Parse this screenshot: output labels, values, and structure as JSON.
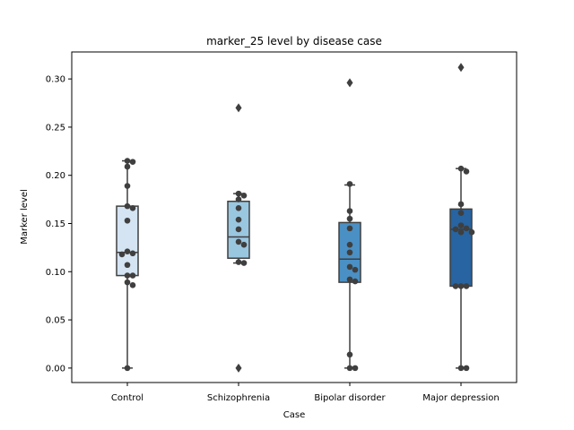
{
  "chart_data": {
    "type": "box",
    "title": "marker_25 level by disease case",
    "xlabel": "Case",
    "ylabel": "Marker level",
    "ylim": [
      -0.015,
      0.328
    ],
    "yticks": [
      0.0,
      0.05,
      0.1,
      0.15,
      0.2,
      0.25,
      0.3
    ],
    "ytick_labels": [
      "0.00",
      "0.05",
      "0.10",
      "0.15",
      "0.20",
      "0.25",
      "0.30"
    ],
    "grid": false,
    "categories": [
      "Control",
      "Schizophrenia",
      "Bipolar disorder",
      "Major depression"
    ],
    "colors": [
      "#d4e4f3",
      "#9ac7e0",
      "#4a90c4",
      "#2764a1"
    ],
    "boxes": [
      {
        "q1": 0.096,
        "median": 0.12,
        "q3": 0.168,
        "whisker_low": 0.0,
        "whisker_high": 0.215,
        "outliers": []
      },
      {
        "q1": 0.114,
        "median": 0.136,
        "q3": 0.173,
        "whisker_low": 0.109,
        "whisker_high": 0.181,
        "outliers": [
          0.27,
          0.0
        ]
      },
      {
        "q1": 0.089,
        "median": 0.113,
        "q3": 0.151,
        "whisker_low": 0.0,
        "whisker_high": 0.19,
        "outliers": [
          0.296
        ]
      },
      {
        "q1": 0.085,
        "median": 0.144,
        "q3": 0.165,
        "whisker_low": 0.0,
        "whisker_high": 0.207,
        "outliers": [
          0.312
        ]
      }
    ],
    "points": [
      [
        0.215,
        0.214,
        0.209,
        0.189,
        0.168,
        0.166,
        0.153,
        0.121,
        0.119,
        0.118,
        0.107,
        0.096,
        0.096,
        0.089,
        0.086,
        0.0
      ],
      [
        0.181,
        0.179,
        0.175,
        0.166,
        0.154,
        0.144,
        0.131,
        0.128,
        0.11,
        0.109
      ],
      [
        0.191,
        0.163,
        0.155,
        0.145,
        0.128,
        0.12,
        0.105,
        0.102,
        0.092,
        0.09,
        0.014,
        0.0,
        0.0
      ],
      [
        0.207,
        0.204,
        0.17,
        0.161,
        0.148,
        0.145,
        0.144,
        0.141,
        0.141,
        0.085,
        0.085,
        0.085,
        0.0,
        0.0
      ]
    ]
  }
}
